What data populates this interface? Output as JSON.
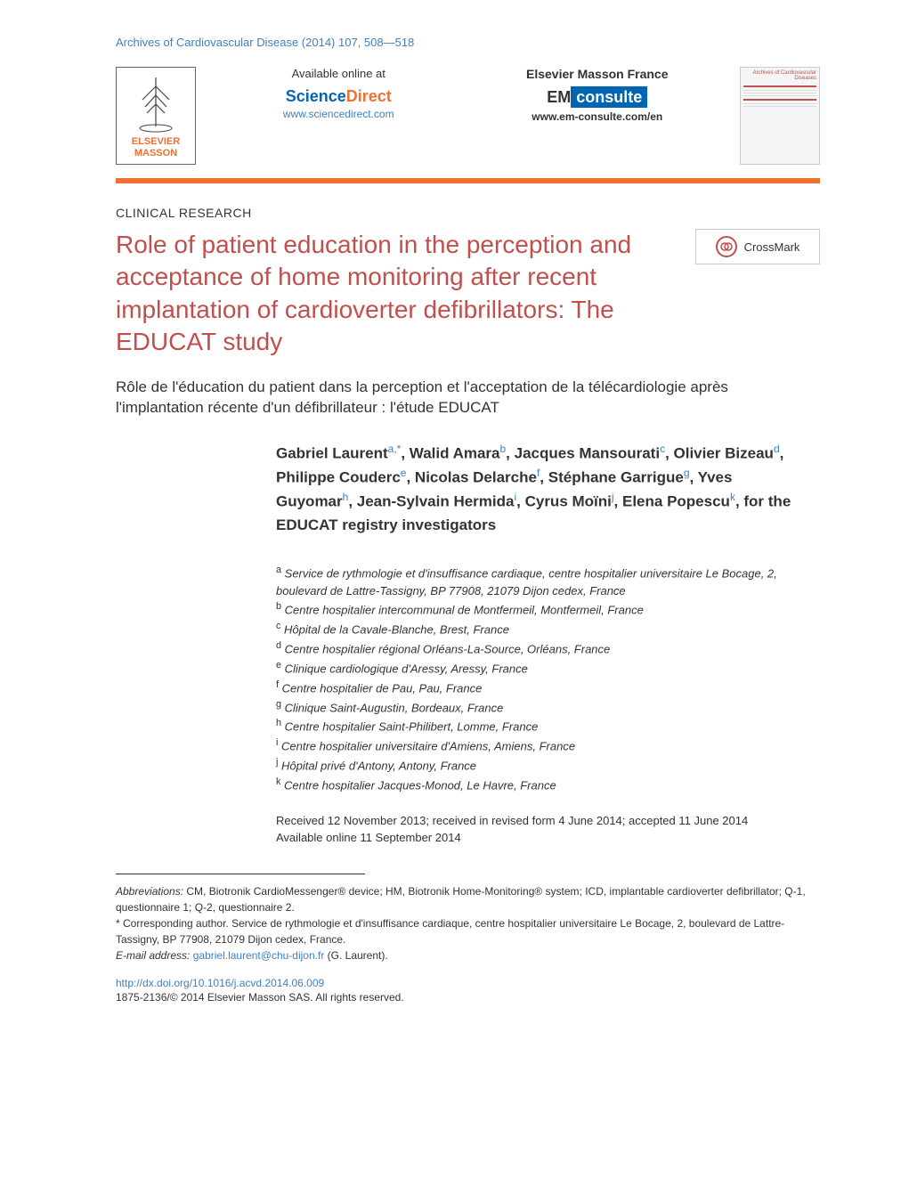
{
  "journal_header": "Archives of Cardiovascular Disease (2014) 107, 508—518",
  "publisher": {
    "name_line1": "ELSEVIER",
    "name_line2": "MASSON"
  },
  "online_section": {
    "available_text": "Available online at",
    "sd_science": "Science",
    "sd_direct": "Direct",
    "sd_url": "www.sciencedirect.com",
    "emf_text": "Elsevier Masson France",
    "em_prefix": "EM",
    "em_suffix": "consulte",
    "em_url": "www.em-consulte.com/en"
  },
  "journal_thumb": {
    "title": "Archives of Cardiovascular Diseases"
  },
  "crossmark": "CrossMark",
  "article_type": "CLINICAL RESEARCH",
  "main_title": "Role of patient education in the perception and acceptance of home monitoring after recent implantation of cardioverter defibrillators: The EDUCAT study",
  "subtitle": "Rôle de l'éducation du patient dans la perception et l'acceptation de la télécardiologie après l'implantation récente d'un défibrillateur : l'étude EDUCAT",
  "authors_html": "Gabriel Laurent<sup>a,*</sup>, Walid Amara<sup>b</sup>, Jacques Mansourati<sup>c</sup>, Olivier Bizeau<sup>d</sup>, Philippe Couderc<sup>e</sup>, Nicolas Delarche<sup>f</sup>, Stéphane Garrigue<sup>g</sup>, Yves Guyomar<sup>h</sup>, Jean-Sylvain Hermida<sup>i</sup>, Cyrus Moïni<sup>j</sup>, Elena Popescu<sup>k</sup>, for the EDUCAT registry investigators",
  "affiliations": [
    {
      "sup": "a",
      "text": "Service de rythmologie et d'insuffisance cardiaque, centre hospitalier universitaire Le Bocage, 2, boulevard de Lattre-Tassigny, BP 77908, 21079 Dijon cedex, France"
    },
    {
      "sup": "b",
      "text": "Centre hospitalier intercommunal de Montfermeil, Montfermeil, France"
    },
    {
      "sup": "c",
      "text": "Hôpital de la Cavale-Blanche, Brest, France"
    },
    {
      "sup": "d",
      "text": "Centre hospitalier régional Orléans-La-Source, Orléans, France"
    },
    {
      "sup": "e",
      "text": "Clinique cardiologique d'Aressy, Aressy, France"
    },
    {
      "sup": "f",
      "text": "Centre hospitalier de Pau, Pau, France"
    },
    {
      "sup": "g",
      "text": "Clinique Saint-Augustin, Bordeaux, France"
    },
    {
      "sup": "h",
      "text": "Centre hospitalier Saint-Philibert, Lomme, France"
    },
    {
      "sup": "i",
      "text": "Centre hospitalier universitaire d'Amiens, Amiens, France"
    },
    {
      "sup": "j",
      "text": "Hôpital privé d'Antony, Antony, France"
    },
    {
      "sup": "k",
      "text": "Centre hospitalier Jacques-Monod, Le Havre, France"
    }
  ],
  "dates": {
    "received": "Received 12 November 2013; received in revised form 4 June 2014; accepted 11 June 2014",
    "online": "Available online 11 September 2014"
  },
  "footer": {
    "abbreviations_label": "Abbreviations:",
    "abbreviations_text": "CM, Biotronik CardioMessenger® device; HM, Biotronik Home-Monitoring® system; ICD, implantable cardioverter defibrillator; Q-1, questionnaire 1; Q-2, questionnaire 2.",
    "corresponding_label": "* Corresponding author.",
    "corresponding_text": "Service de rythmologie et d'insuffisance cardiaque, centre hospitalier universitaire Le Bocage, 2, boulevard de Lattre-Tassigny, BP 77908, 21079 Dijon cedex, France.",
    "email_label": "E-mail address:",
    "email": "gabriel.laurent@chu-dijon.fr",
    "email_name": "(G. Laurent)."
  },
  "doi": "http://dx.doi.org/10.1016/j.acvd.2014.06.009",
  "copyright": "1875-2136/© 2014 Elsevier Masson SAS. All rights reserved.",
  "colors": {
    "link": "#4080c0",
    "title": "#c0504d",
    "orange": "#f07030",
    "sd_blue": "#0066b3"
  }
}
